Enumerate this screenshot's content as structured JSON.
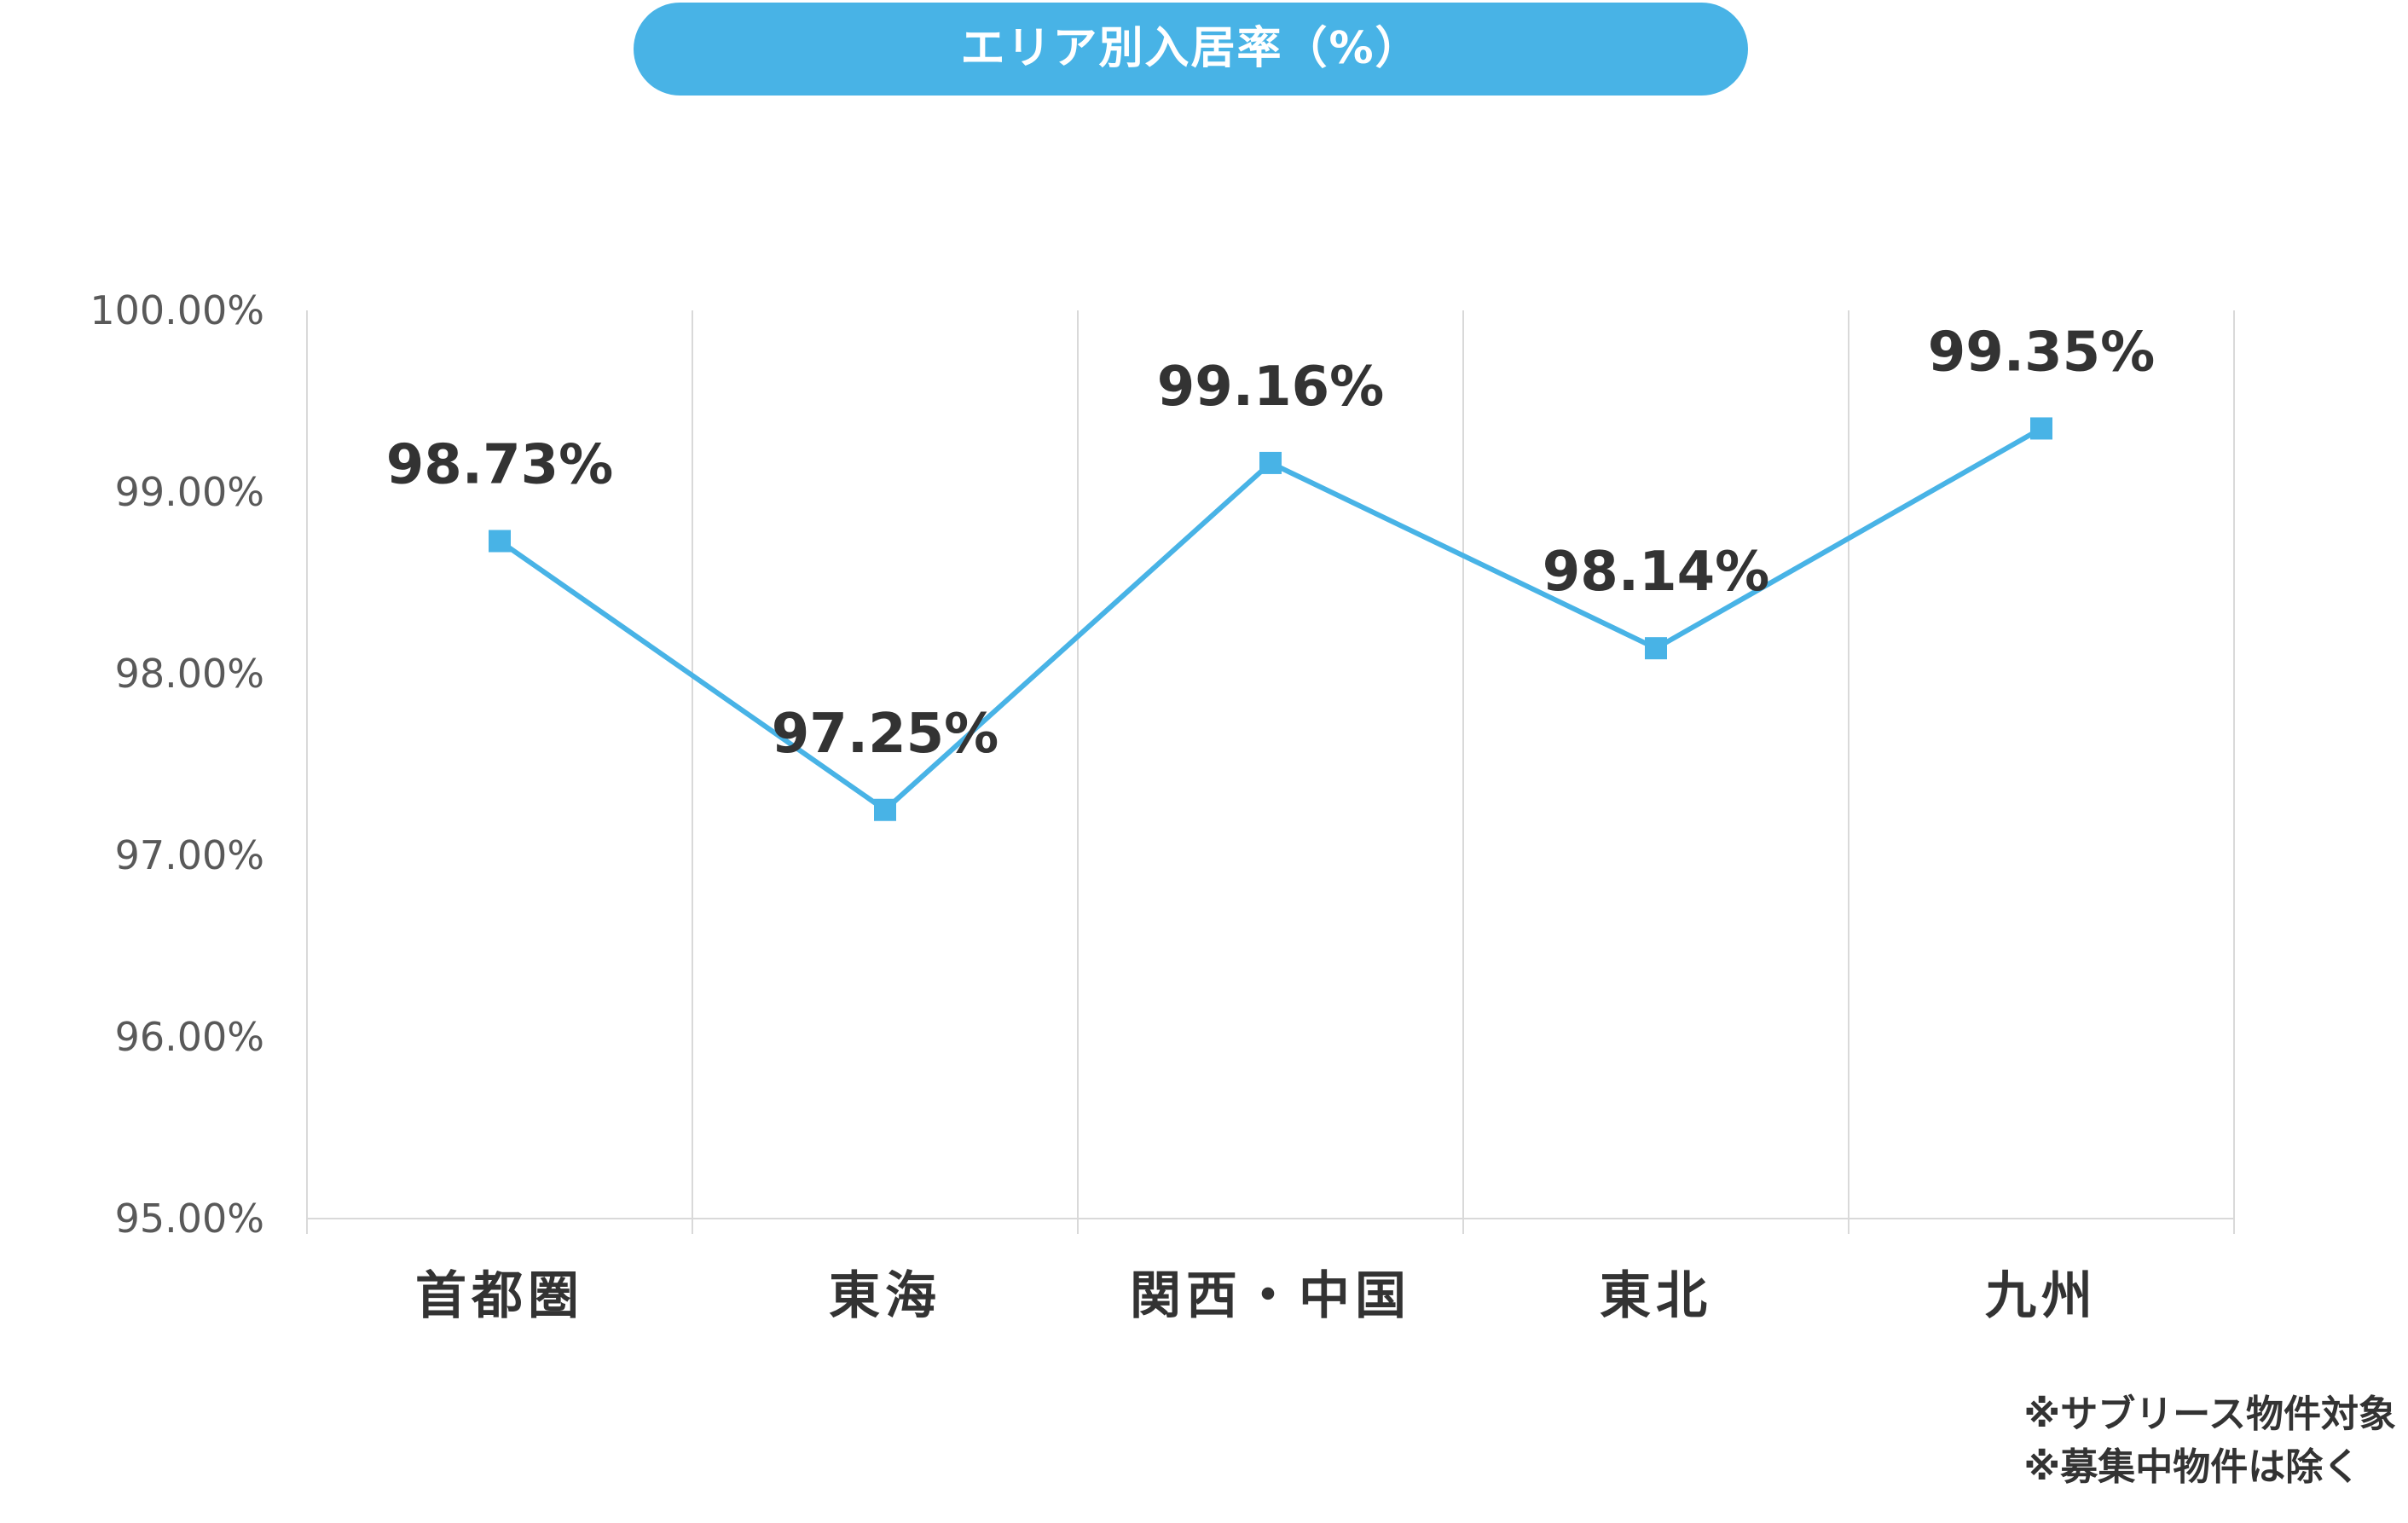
{
  "chart_data": {
    "type": "line",
    "title": "エリア別入居率（%）",
    "xlabel": "",
    "ylabel": "",
    "categories": [
      "首都圏",
      "東海",
      "関西・中国",
      "東北",
      "九州"
    ],
    "series": [
      {
        "values": [
          98.73,
          97.25,
          99.16,
          98.14,
          99.35
        ],
        "data_labels": [
          "98.73%",
          "97.25%",
          "99.16%",
          "98.14%",
          "99.35%"
        ],
        "marker": "square"
      }
    ],
    "y_ticks": [
      95,
      96,
      97,
      98,
      99,
      100
    ],
    "y_tick_labels": [
      "95.00%",
      "96.00%",
      "97.00%",
      "98.00%",
      "99.00%",
      "100.00%"
    ],
    "ylim": [
      95,
      100
    ],
    "grid": "vertical",
    "legend": "none"
  },
  "notes": [
    "※サブリース物件対象",
    "※募集中物件は除く"
  ],
  "colors": {
    "accent": "#48b3e6",
    "text": "#333333",
    "axis_text": "#595959",
    "grid": "#d9d9d9"
  }
}
